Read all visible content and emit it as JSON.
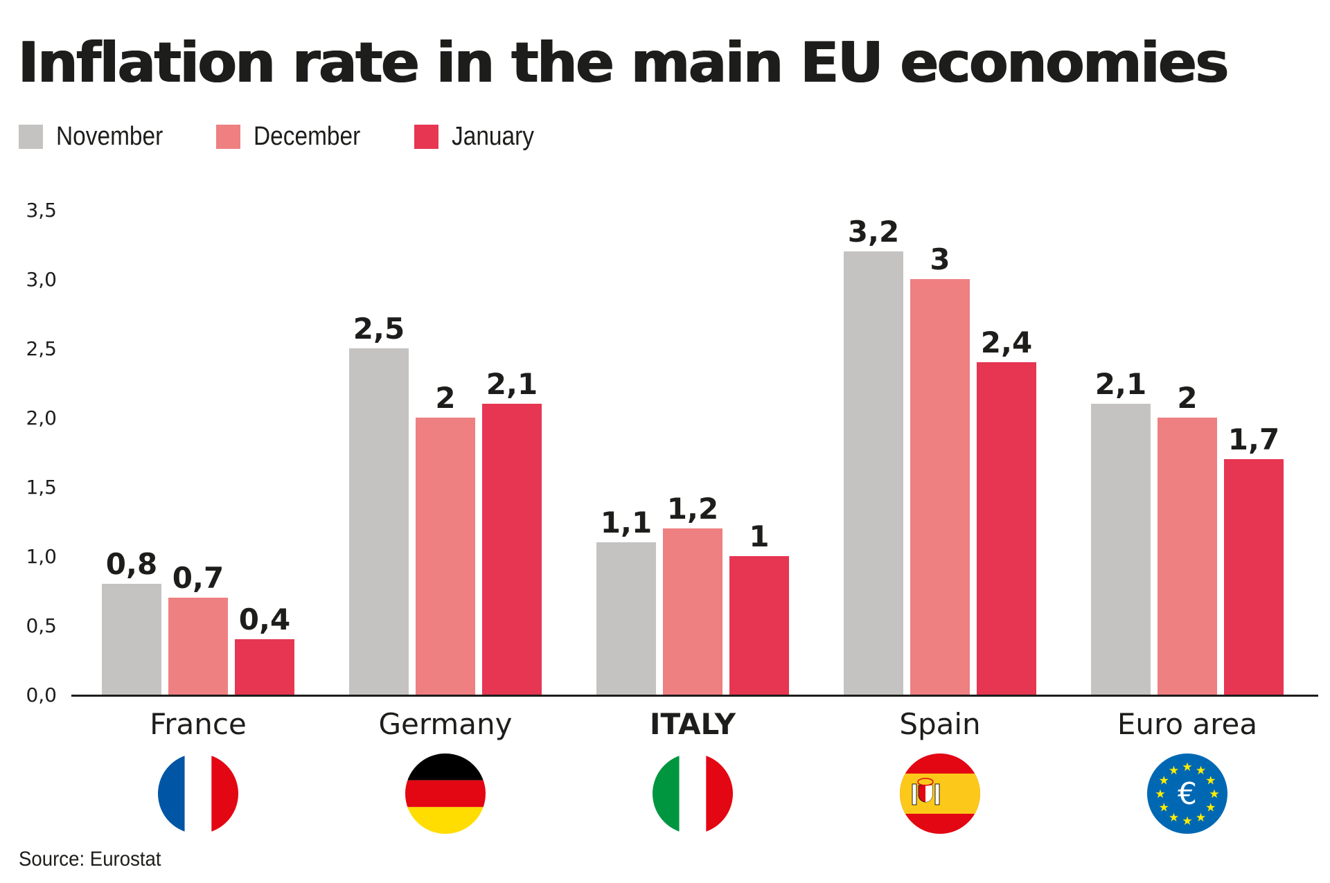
{
  "title": "Inflation rate in the main EU economies",
  "source": "Source: Eurostat",
  "legend": [
    {
      "label": "November",
      "color": "#c4c3c1"
    },
    {
      "label": "December",
      "color": "#ee8081"
    },
    {
      "label": "January",
      "color": "#e63652"
    }
  ],
  "chart_data": {
    "type": "bar",
    "title": "Inflation rate in the main EU economies",
    "xlabel": "",
    "ylabel": "",
    "ylim": [
      0,
      3.5
    ],
    "yticks": [
      "0,0",
      "0,5",
      "1,0",
      "1,5",
      "2,0",
      "2,5",
      "3,0",
      "3,5"
    ],
    "ytick_values": [
      0,
      0.5,
      1.0,
      1.5,
      2.0,
      2.5,
      3.0,
      3.5
    ],
    "grid": false,
    "legend_position": "top-left",
    "categories": [
      "France",
      "Germany",
      "ITALY",
      "Spain",
      "Euro area"
    ],
    "category_bold": [
      false,
      false,
      true,
      false,
      false
    ],
    "flags": [
      "france-flag",
      "germany-flag",
      "italy-flag",
      "spain-flag",
      "eu-flag"
    ],
    "series": [
      {
        "name": "November",
        "color": "#c4c3c1",
        "values": [
          0.8,
          2.5,
          1.1,
          3.2,
          2.1
        ],
        "labels": [
          "0,8",
          "2,5",
          "1,1",
          "3,2",
          "2,1"
        ]
      },
      {
        "name": "December",
        "color": "#ee8081",
        "values": [
          0.7,
          2.0,
          1.2,
          3.0,
          2.0
        ],
        "labels": [
          "0,7",
          "2",
          "1,2",
          "3",
          "2"
        ]
      },
      {
        "name": "January",
        "color": "#e63652",
        "values": [
          0.4,
          2.1,
          1.0,
          2.4,
          1.7
        ],
        "labels": [
          "0,4",
          "2,1",
          "1",
          "2,4",
          "1,7"
        ]
      }
    ]
  }
}
